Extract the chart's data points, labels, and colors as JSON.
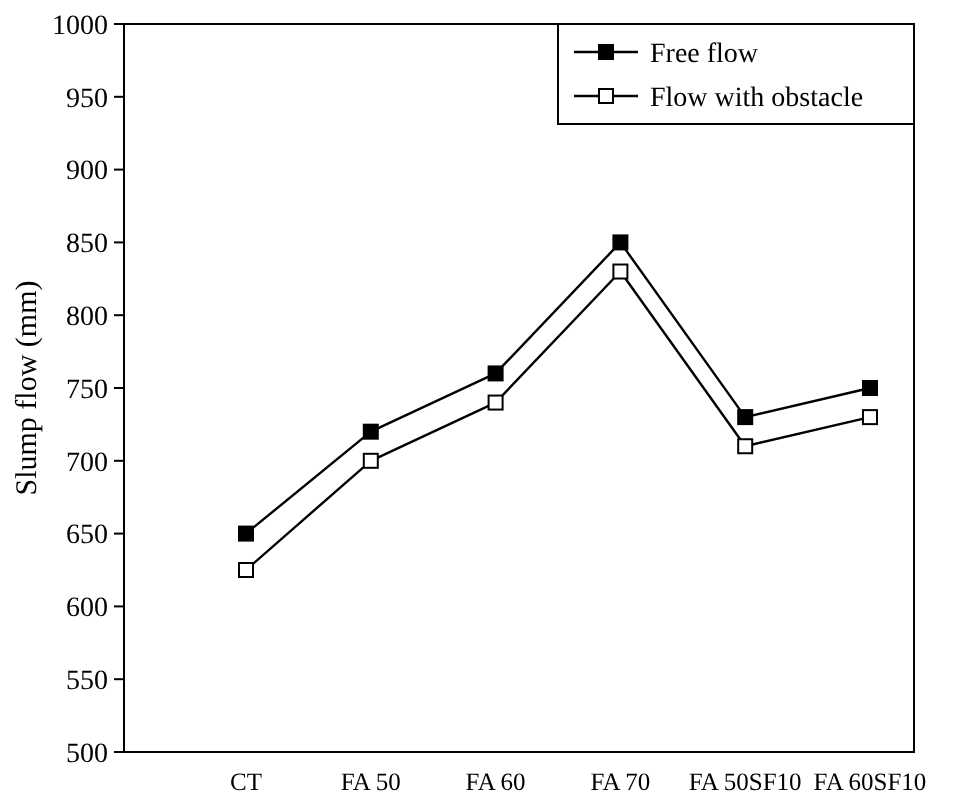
{
  "chart_data": {
    "type": "line",
    "ylabel": "Slump flow (mm)",
    "categories": [
      "CT",
      "FA 50",
      "FA 60",
      "FA 70",
      "FA 50SF10",
      "FA 60SF10"
    ],
    "series": [
      {
        "name": "Free flow",
        "color": "#000000",
        "values": [
          650,
          720,
          760,
          850,
          730,
          750
        ]
      },
      {
        "name": "Flow with obstacle",
        "color": "#000000",
        "values": [
          625,
          700,
          740,
          830,
          710,
          730
        ]
      }
    ],
    "ylim": [
      500,
      1000
    ],
    "yticks": [
      500,
      550,
      600,
      650,
      700,
      750,
      800,
      850,
      900,
      950,
      1000
    ],
    "marker": "square",
    "line_style": "solid",
    "grid": false,
    "legend": "top right"
  }
}
